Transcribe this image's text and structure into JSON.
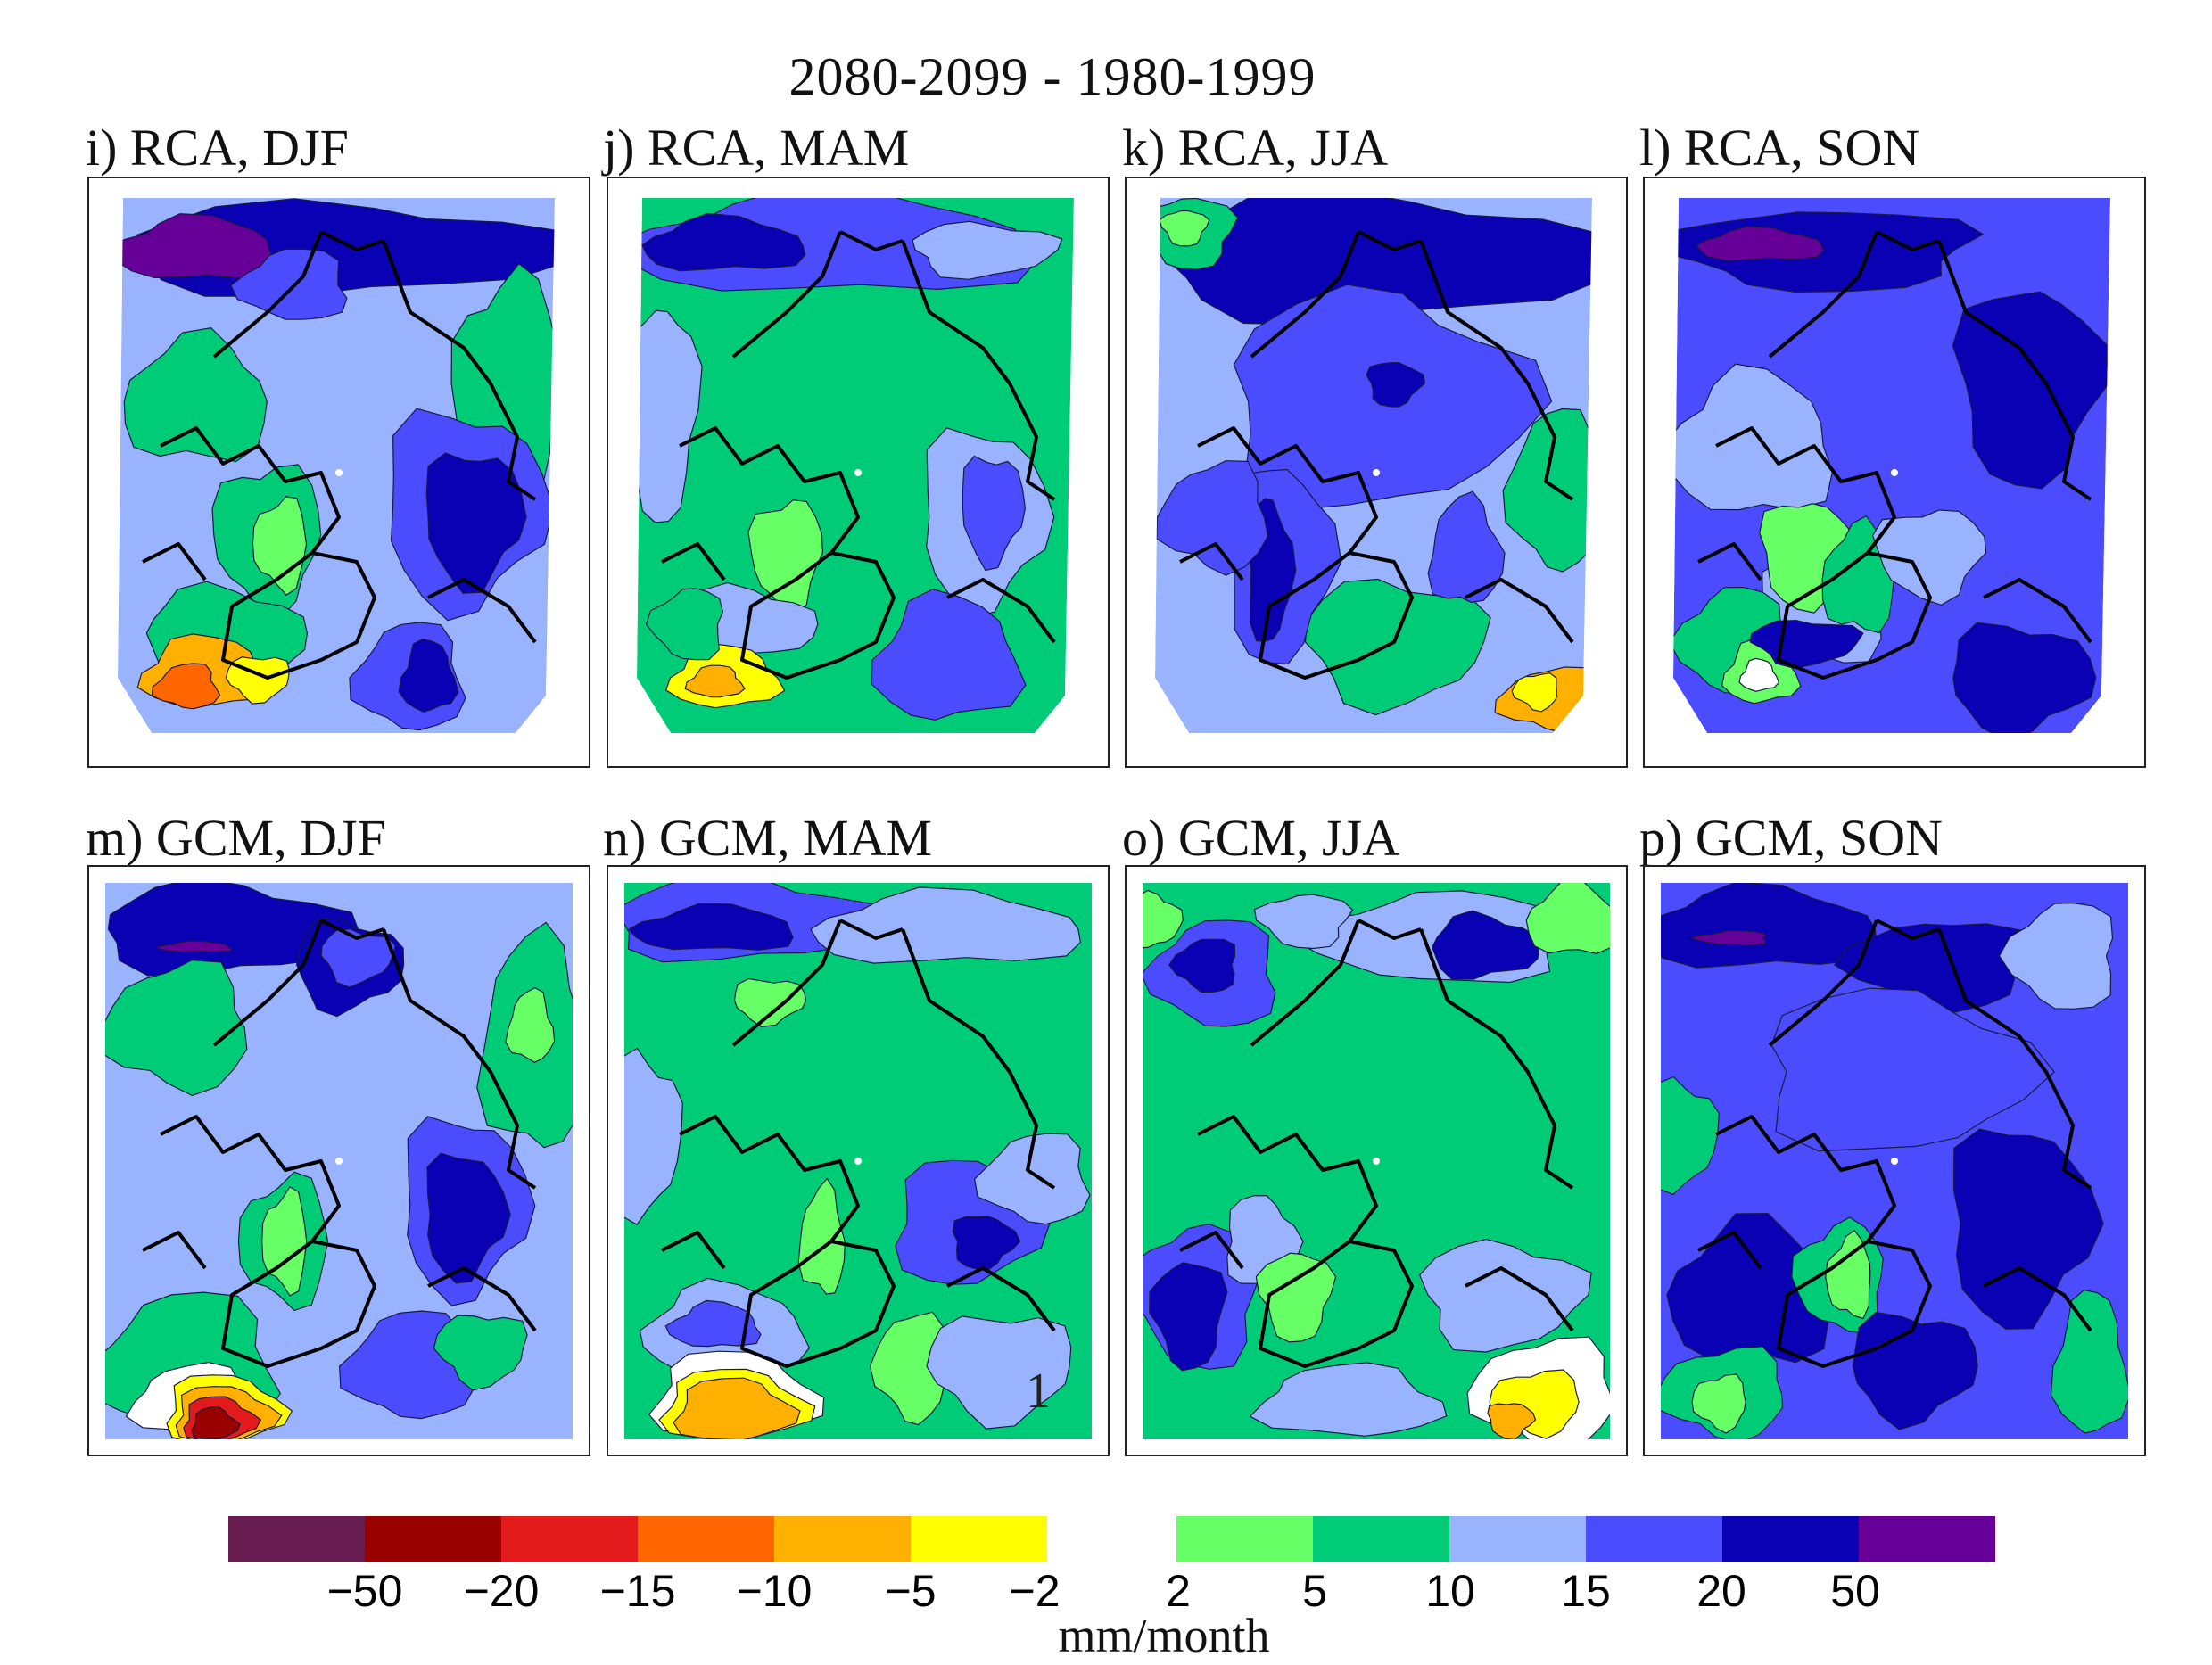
{
  "chart_data": {
    "type": "heatmap",
    "title": "2080-2099 - 1980-1999",
    "description_units": "mm/month",
    "colorbar": {
      "label": "mm/month",
      "negative": {
        "ticks": [
          "−50",
          "−20",
          "−15",
          "−10",
          "−5",
          "−2"
        ],
        "colors": [
          "#661c4e",
          "#990000",
          "#e31a1c",
          "#ff6600",
          "#ffb000",
          "#ffff00"
        ]
      },
      "positive": {
        "ticks": [
          "2",
          "5",
          "10",
          "15",
          "20",
          "50"
        ],
        "colors": [
          "#66ff66",
          "#00cc77",
          "#99b3ff",
          "#4c4cff",
          "#0a00b4",
          "#660099"
        ]
      },
      "levels": [
        -50,
        -20,
        -15,
        -10,
        -5,
        -2,
        2,
        5,
        10,
        15,
        20,
        50
      ]
    },
    "panels": [
      {
        "id": "i",
        "label": "i) RCA, DJF",
        "model": "RCA",
        "season": "DJF",
        "dominant": "10-15",
        "arctic_ocean": "10-15",
        "north_atlantic": "-15 to -5"
      },
      {
        "id": "j",
        "label": "j) RCA, MAM",
        "model": "RCA",
        "season": "MAM",
        "dominant": "5-10",
        "arctic_ocean": "5-10",
        "north_atlantic": "-10 to -2"
      },
      {
        "id": "k",
        "label": "k) RCA, JJA",
        "model": "RCA",
        "season": "JJA",
        "dominant": "15-20",
        "arctic_ocean": "15-20",
        "north_atlantic": "-10 to -2"
      },
      {
        "id": "l",
        "label": "l) RCA, SON",
        "model": "RCA",
        "season": "SON",
        "dominant": "15-20",
        "arctic_ocean": "15-20",
        "north_atlantic": "2-5"
      },
      {
        "id": "m",
        "label": "m) GCM, DJF",
        "model": "GCM",
        "season": "DJF",
        "dominant": "10-15",
        "arctic_ocean": "10-15",
        "north_atlantic": "-50 to -5"
      },
      {
        "id": "n",
        "label": "n) GCM, MAM",
        "model": "GCM",
        "season": "MAM",
        "dominant": "5-10",
        "arctic_ocean": "5-10",
        "north_atlantic": "-10 to -2",
        "annotation": "1"
      },
      {
        "id": "o",
        "label": "o) GCM, JJA",
        "model": "GCM",
        "season": "JJA",
        "dominant": "5-10",
        "arctic_ocean": "5-10",
        "north_atlantic": "-10 to -2"
      },
      {
        "id": "p",
        "label": "p) GCM, SON",
        "model": "GCM",
        "season": "SON",
        "dominant": "15-20",
        "arctic_ocean": "15-20",
        "north_atlantic": "2-5"
      }
    ]
  }
}
